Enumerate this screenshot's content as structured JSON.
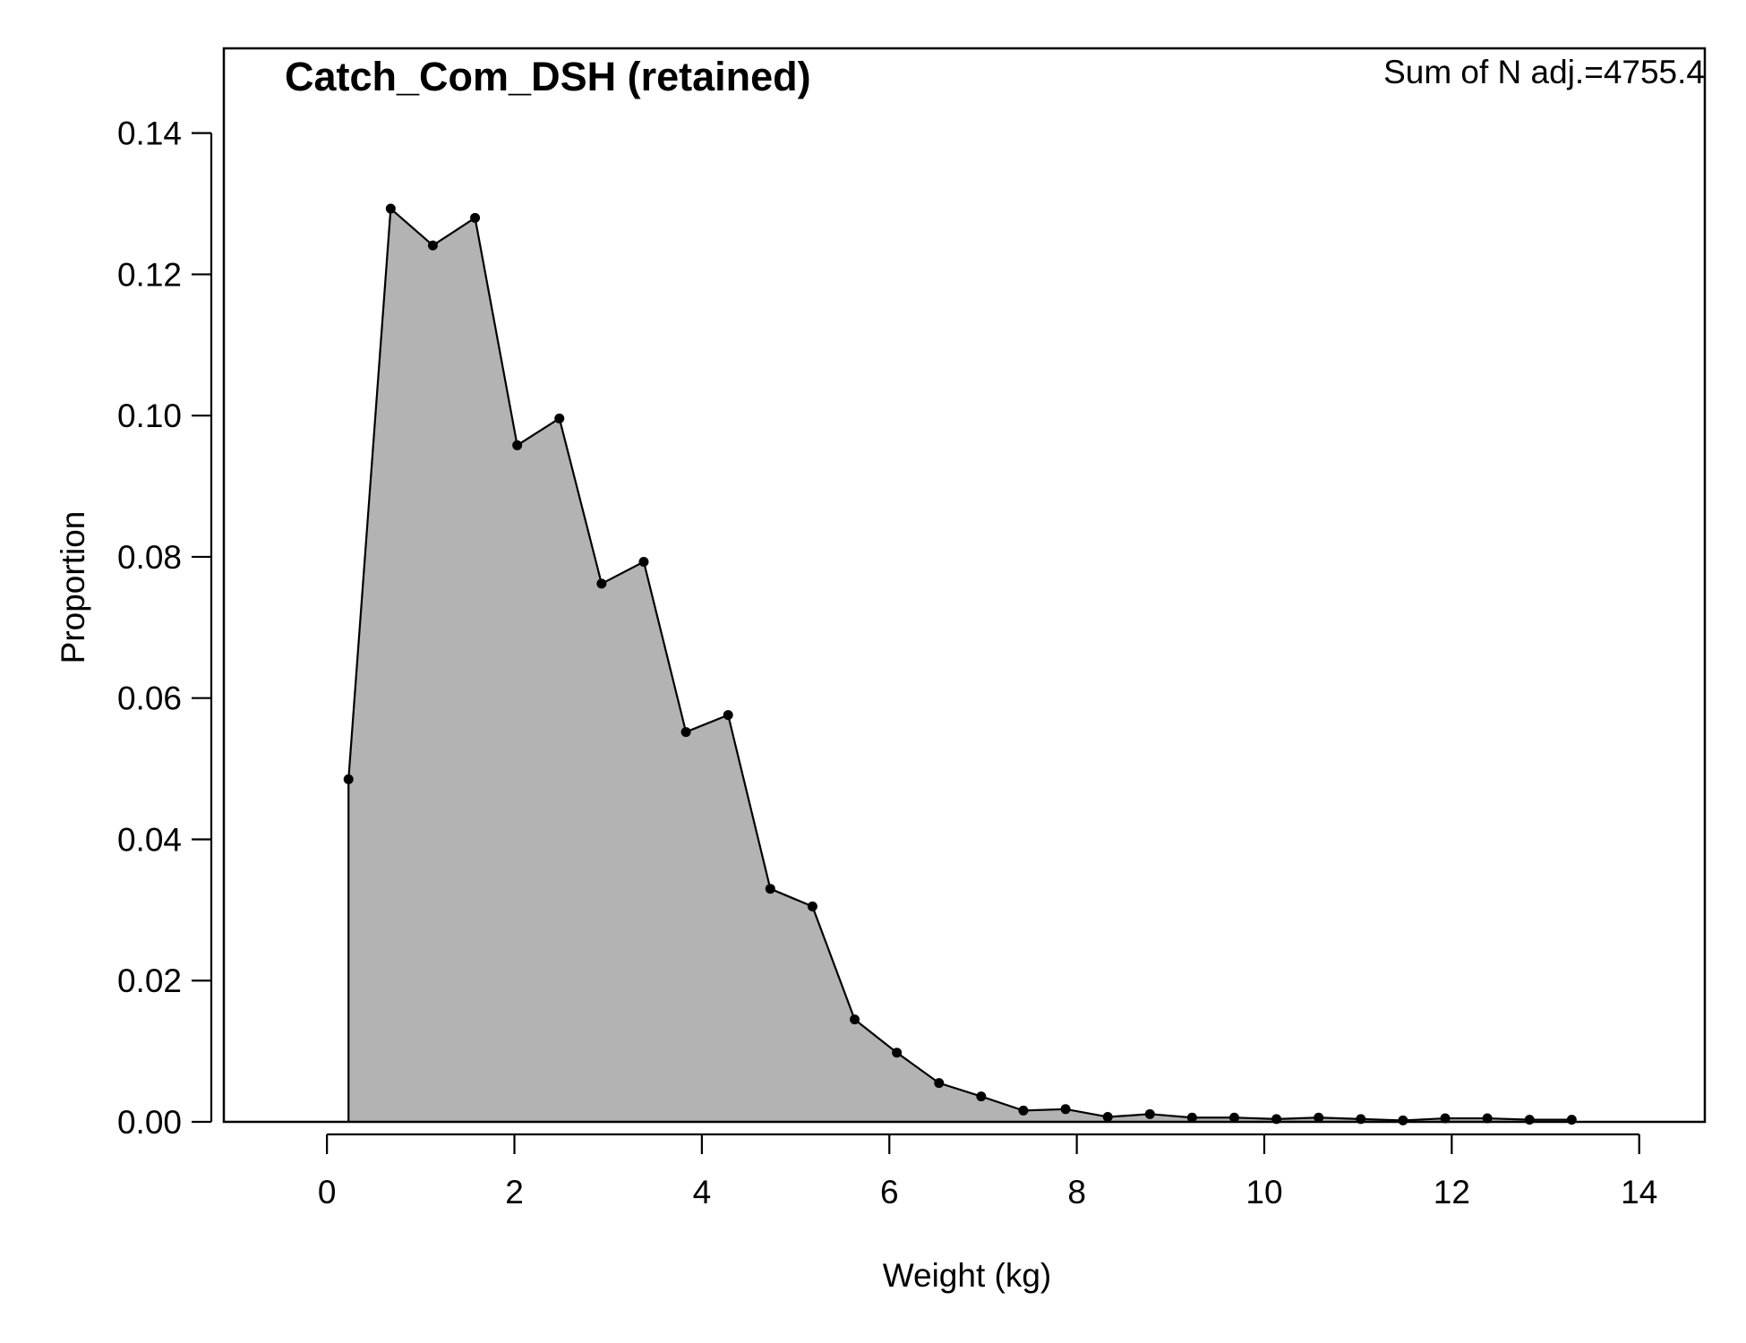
{
  "chart_data": {
    "type": "area",
    "title": "Catch_Com_DSH (retained)",
    "annotation": "Sum of N adj.=4755.4",
    "xlabel": "Weight (kg)",
    "ylabel": "Proportion",
    "xlim": [
      -1.1,
      14.7
    ],
    "ylim": [
      0,
      0.152
    ],
    "xticks": [
      0,
      2,
      4,
      6,
      8,
      10,
      12,
      14
    ],
    "xtick_labels": [
      "0",
      "2",
      "4",
      "6",
      "8",
      "10",
      "12",
      "14"
    ],
    "yticks": [
      0,
      0.02,
      0.04,
      0.06,
      0.08,
      0.1,
      0.12,
      0.14
    ],
    "ytick_labels": [
      "0.00",
      "0.02",
      "0.04",
      "0.06",
      "0.08",
      "0.10",
      "0.12",
      "0.14"
    ],
    "grid": false,
    "fill_color": "#b3b3b3",
    "line_color": "#000000",
    "x": [
      0.23,
      0.68,
      1.13,
      1.58,
      2.03,
      2.48,
      2.93,
      3.38,
      3.83,
      4.28,
      4.73,
      5.18,
      5.63,
      6.08,
      6.53,
      6.98,
      7.43,
      7.88,
      8.33,
      8.78,
      9.23,
      9.68,
      10.13,
      10.58,
      11.03,
      11.48,
      11.93,
      12.38,
      12.83,
      13.28
    ],
    "y": [
      0.0485,
      0.1293,
      0.1241,
      0.128,
      0.0958,
      0.0996,
      0.0762,
      0.0793,
      0.0552,
      0.0576,
      0.033,
      0.0305,
      0.0145,
      0.0098,
      0.0055,
      0.0036,
      0.0016,
      0.0018,
      0.0007,
      0.0011,
      0.0006,
      0.0006,
      0.0004,
      0.0006,
      0.0004,
      0.0002,
      0.0005,
      0.0005,
      0.0003,
      0.0003
    ]
  }
}
